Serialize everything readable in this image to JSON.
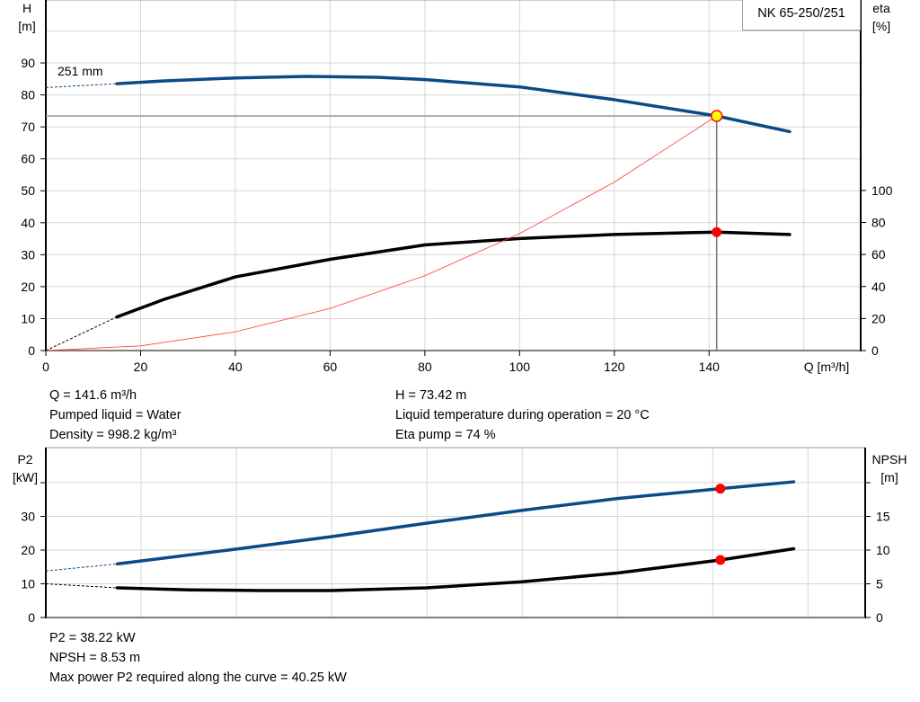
{
  "chart_data": [
    {
      "type": "line",
      "title": "NK 65-250/251",
      "xlabel": "Q [m³/h]",
      "ylabel": "H\n[m]",
      "y2label": "eta\n[%]",
      "xlim": [
        0,
        172
      ],
      "ylim": [
        0,
        109.7
      ],
      "y2lim": [
        0,
        219
      ],
      "xticks": [
        0,
        20,
        40,
        60,
        80,
        100,
        120,
        140
      ],
      "yticks": [
        0,
        10,
        20,
        30,
        40,
        50,
        60,
        70,
        80,
        90
      ],
      "y2ticks": [
        0,
        20,
        40,
        60,
        80,
        100
      ],
      "grid": true,
      "annotation": "251 mm",
      "duty_point": {
        "Q": 141.6,
        "H": 73.42,
        "eta": 74
      },
      "series": [
        {
          "axis": "left",
          "color": "#0b4a86",
          "x": [
            15,
            25,
            40,
            55,
            70,
            80,
            100,
            120,
            141.6,
            157
          ],
          "values": [
            83.5,
            84.4,
            85.3,
            85.8,
            85.5,
            84.8,
            82.5,
            78.5,
            73.42,
            68.5
          ],
          "extrapolated": {
            "x": [
              0,
              15
            ],
            "values": [
              82.3,
              83.5
            ]
          }
        },
        {
          "axis": "right",
          "color": "#000000",
          "x": [
            15,
            25,
            40,
            60,
            80,
            100,
            120,
            141.6,
            157
          ],
          "values": [
            21,
            32,
            46,
            57,
            66,
            70,
            72.5,
            74,
            72.5
          ],
          "extrapolated": {
            "x": [
              0,
              15
            ],
            "values": [
              0,
              21
            ]
          }
        },
        {
          "axis": "left",
          "color": "#ff3b30",
          "x": [
            0,
            20,
            40,
            60,
            80,
            100,
            120,
            141.6
          ],
          "values": [
            0,
            1.46,
            5.86,
            13.18,
            23.43,
            36.6,
            52.7,
            73.42
          ]
        }
      ]
    },
    {
      "type": "line",
      "ylabel": "P2\n[kW]",
      "y2label": "NPSH\n[m]",
      "xlim": [
        0,
        172
      ],
      "ylim": [
        0,
        50.4
      ],
      "y2lim": [
        0,
        25.2
      ],
      "yticks": [
        0,
        10,
        20,
        30,
        40
      ],
      "ytick_labels": [
        "0",
        "10",
        "20",
        "30",
        ""
      ],
      "y2ticks": [
        0,
        5,
        10,
        15,
        20
      ],
      "y2tick_labels": [
        "0",
        "5",
        "10",
        "15",
        ""
      ],
      "grid": true,
      "series": [
        {
          "axis": "left",
          "color": "#0b4a86",
          "x": [
            15,
            40,
            60,
            80,
            100,
            120,
            141.6,
            157
          ],
          "values": [
            15.9,
            20.3,
            24,
            28,
            31.8,
            35.3,
            38.22,
            40.25
          ],
          "extrapolated": {
            "x": [
              0,
              15
            ],
            "values": [
              13.8,
              15.9
            ]
          },
          "point": {
            "x": 141.6,
            "y": 38.22
          }
        },
        {
          "axis": "right",
          "color": "#000000",
          "x": [
            15,
            30,
            45,
            60,
            80,
            100,
            120,
            141.6,
            157
          ],
          "values": [
            4.4,
            4.1,
            4.0,
            4.0,
            4.4,
            5.3,
            6.6,
            8.53,
            10.2
          ],
          "extrapolated": {
            "x": [
              0,
              15
            ],
            "values": [
              5.0,
              4.4
            ]
          },
          "point": {
            "x": 141.6,
            "y": 8.53
          }
        }
      ]
    }
  ],
  "info_top_left": [
    "Q = 141.6 m³/h",
    "Pumped liquid = Water",
    "Density = 998.2 kg/m³"
  ],
  "info_top_right": [
    "H = 73.42 m",
    "Liquid temperature during operation = 20 °C",
    "Eta pump = 74 %"
  ],
  "info_bottom": [
    "P2 = 38.22 kW",
    "NPSH = 8.53 m",
    "Max power P2 required along the curve = 40.25 kW"
  ]
}
